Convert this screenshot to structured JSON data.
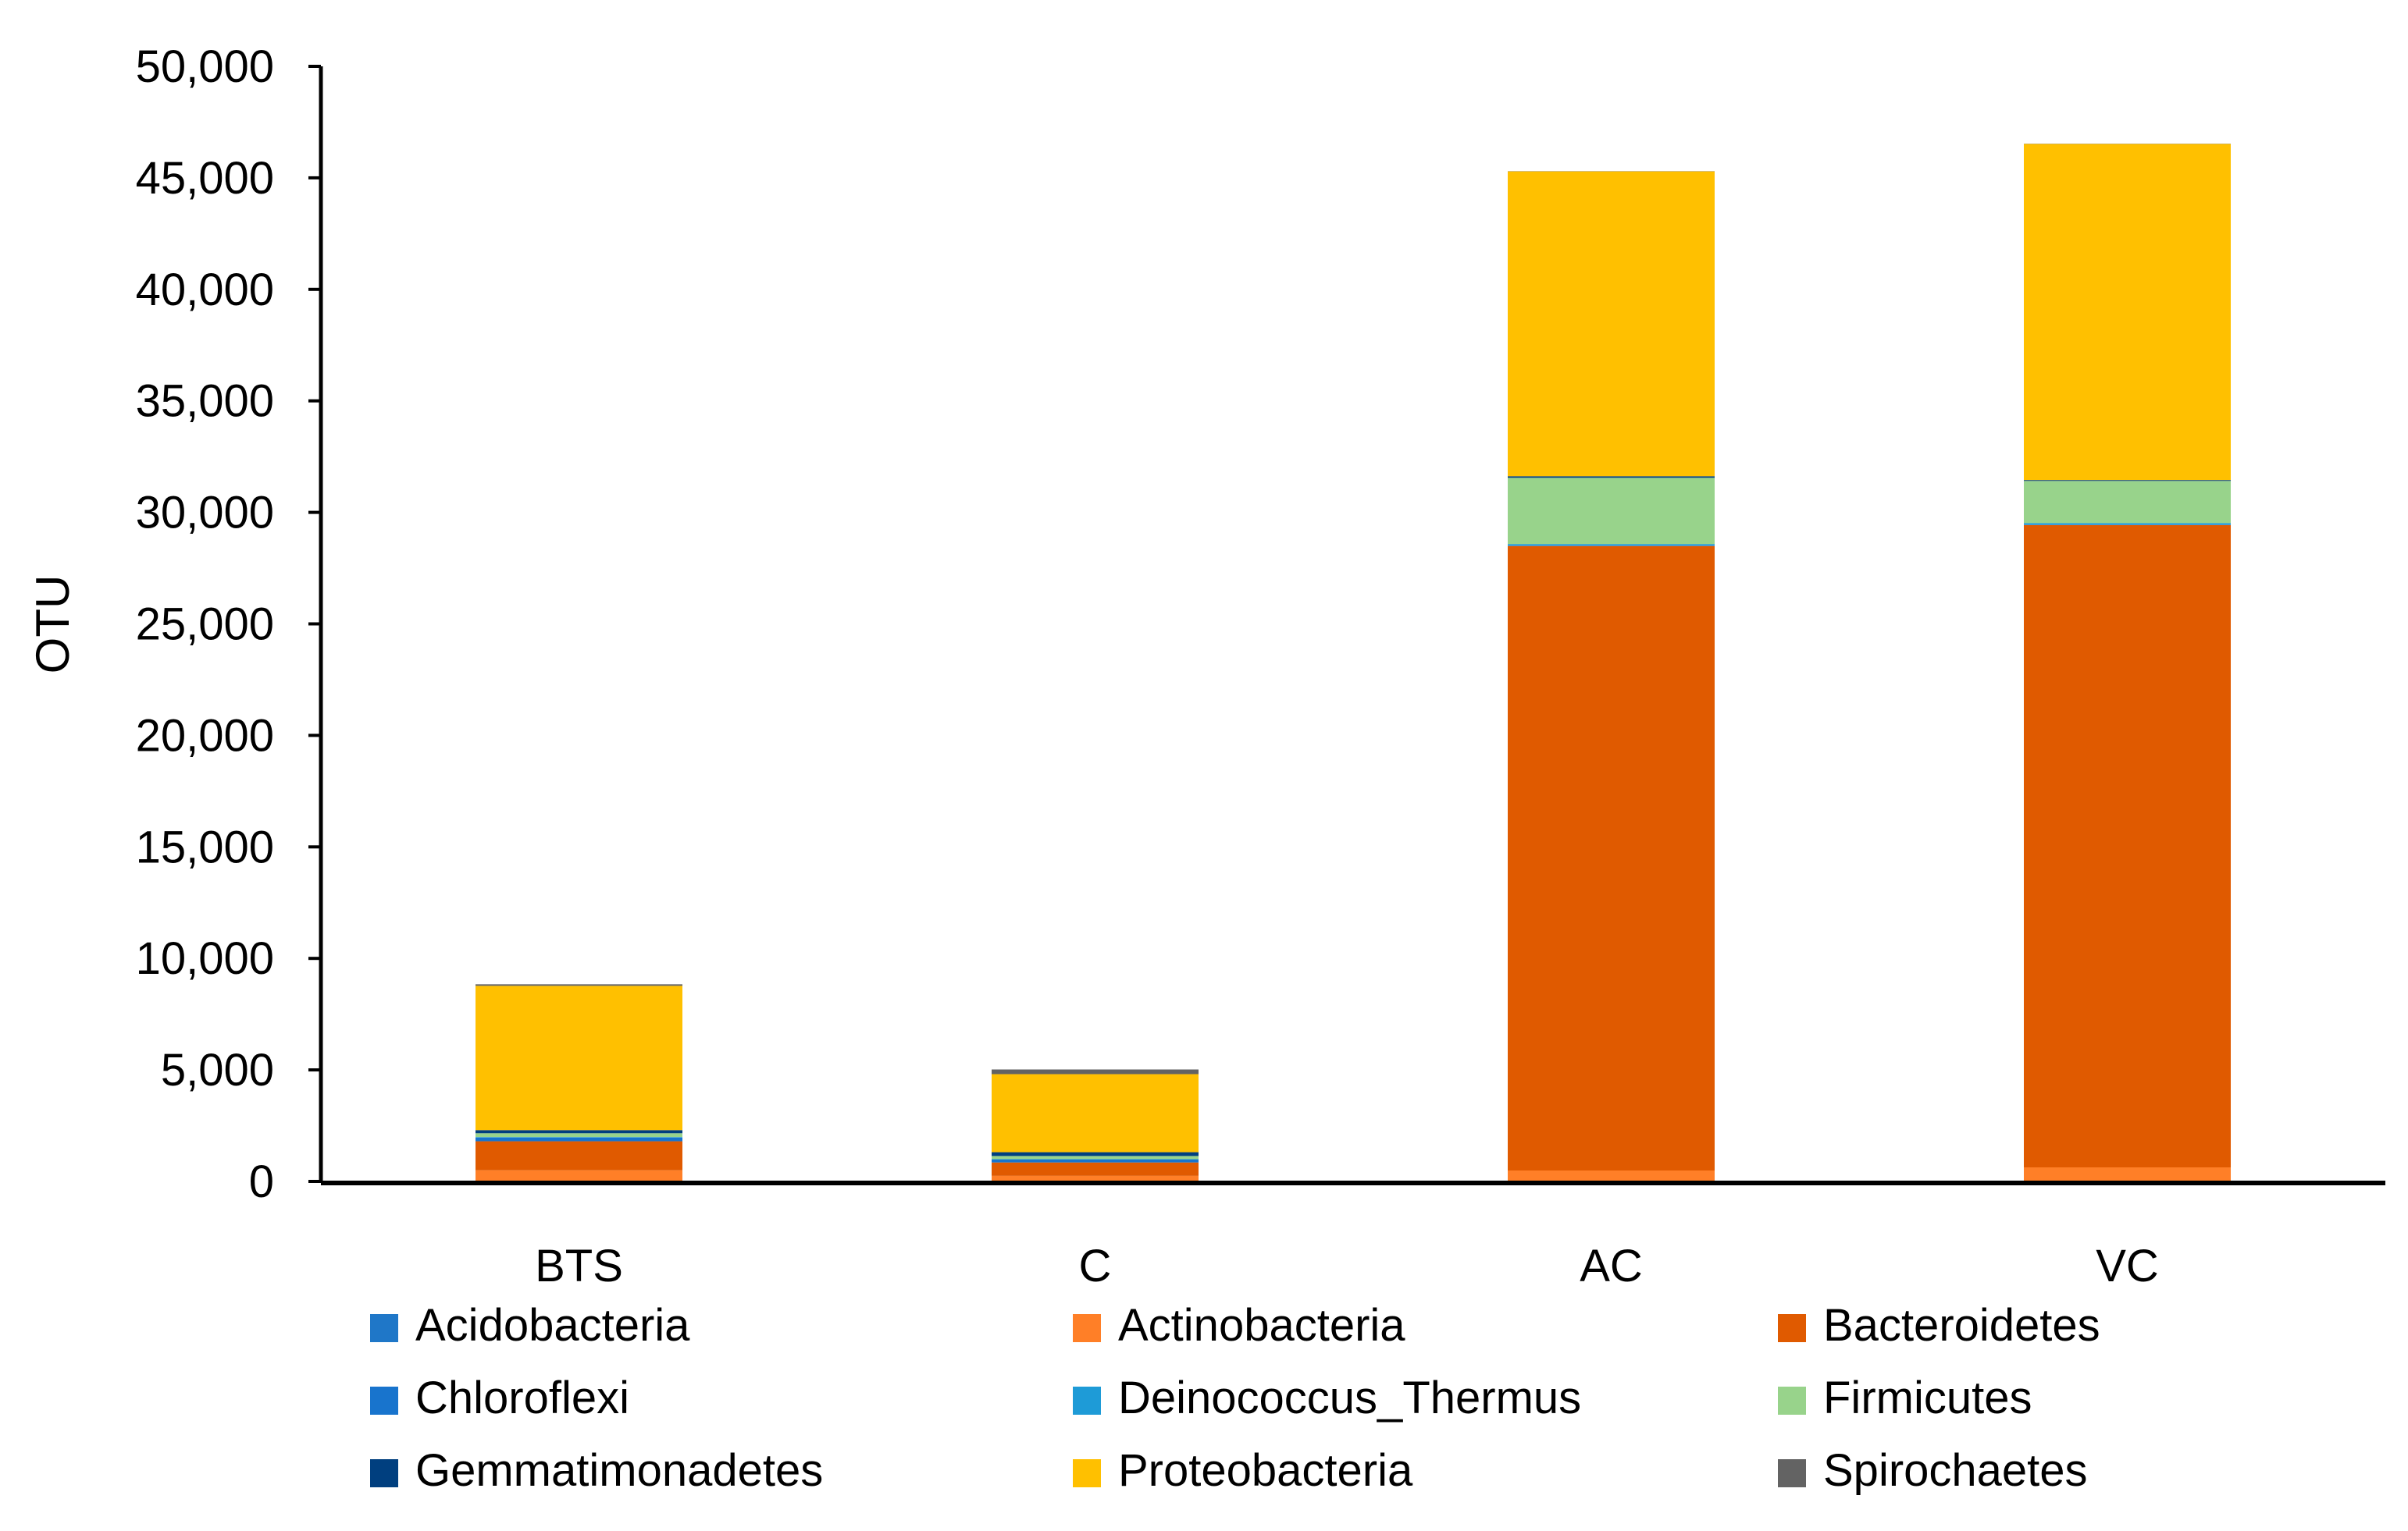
{
  "chart_data": {
    "type": "stacked-bar",
    "title": "",
    "xlabel": "",
    "ylabel": "OTU",
    "ylim": [
      0,
      50000
    ],
    "yticks": [
      "0",
      "5,000",
      "10,000",
      "15,000",
      "20,000",
      "25,000",
      "30,000",
      "35,000",
      "40,000",
      "45,000",
      "50,000"
    ],
    "ytick_values": [
      0,
      5000,
      10000,
      15000,
      20000,
      25000,
      30000,
      35000,
      40000,
      45000,
      50000
    ],
    "grid": false,
    "legend_position": "bottom",
    "categories": [
      "BTS",
      "C",
      "AC",
      "VC"
    ],
    "series": [
      {
        "name": "Acidobacteria",
        "color": "#1F77C8",
        "values": [
          20,
          10,
          10,
          10
        ]
      },
      {
        "name": "Actinobacteria",
        "color": "#FF7F27",
        "values": [
          480,
          240,
          480,
          620
        ]
      },
      {
        "name": "Bacteroidetes",
        "color": "#E05A00",
        "values": [
          1300,
          600,
          28000,
          28800
        ]
      },
      {
        "name": "Chloroflexi",
        "color": "#1874CD",
        "values": [
          170,
          130,
          20,
          20
        ]
      },
      {
        "name": "Deinococcus_Thermus",
        "color": "#1E9BD7",
        "values": [
          20,
          20,
          70,
          70
        ]
      },
      {
        "name": "Firmicutes",
        "color": "#98D38B",
        "values": [
          170,
          140,
          2970,
          1890
        ]
      },
      {
        "name": "Gemmatimonadetes",
        "color": "#003F7F",
        "values": [
          140,
          170,
          70,
          40
        ]
      },
      {
        "name": "Proteobacteria",
        "color": "#FFC000",
        "values": [
          6470,
          3500,
          13670,
          15070
        ]
      },
      {
        "name": "Spirochaetes",
        "color": "#636363",
        "values": [
          70,
          210,
          10,
          10
        ]
      }
    ]
  }
}
